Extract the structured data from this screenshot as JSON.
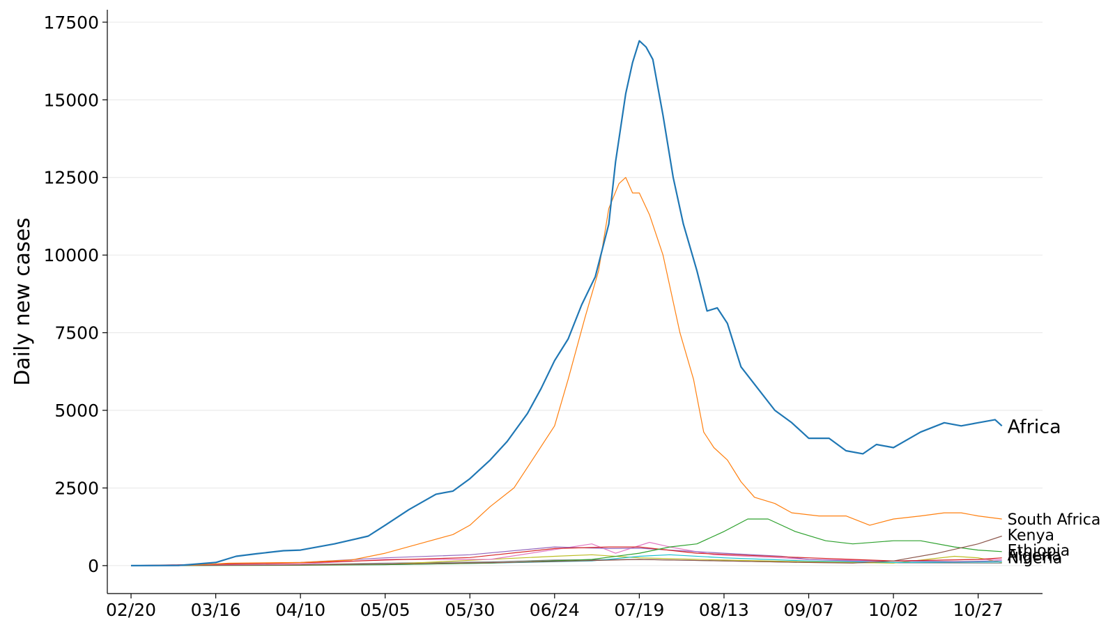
{
  "chart_data": {
    "type": "line",
    "title": "",
    "xlabel": "",
    "ylabel": "Daily new cases",
    "ylim": [
      -900,
      17900
    ],
    "yticks": [
      0,
      2500,
      5000,
      7500,
      10000,
      12500,
      15000,
      17500
    ],
    "ytick_labels": [
      "0",
      "2500",
      "5000",
      "7500",
      "10000",
      "12500",
      "15000",
      "17500"
    ],
    "x_start_date": "02/13",
    "x_end_date": "11/15",
    "xticks": [
      "02/20",
      "03/16",
      "04/10",
      "05/05",
      "05/30",
      "06/24",
      "07/19",
      "08/13",
      "09/07",
      "10/02",
      "10/27"
    ],
    "grid": "horizontal",
    "legend": "none (series names printed at line ends)",
    "series": [
      {
        "name": "Africa",
        "color": "#1f77b4",
        "label": "Africa",
        "points": [
          [
            "02/20",
            0
          ],
          [
            "03/05",
            5
          ],
          [
            "03/16",
            100
          ],
          [
            "03/22",
            300
          ],
          [
            "03/28",
            380
          ],
          [
            "04/05",
            480
          ],
          [
            "04/10",
            500
          ],
          [
            "04/20",
            700
          ],
          [
            "04/30",
            950
          ],
          [
            "05/05",
            1300
          ],
          [
            "05/12",
            1800
          ],
          [
            "05/20",
            2300
          ],
          [
            "05/25",
            2400
          ],
          [
            "05/30",
            2800
          ],
          [
            "06/05",
            3400
          ],
          [
            "06/10",
            4000
          ],
          [
            "06/16",
            4900
          ],
          [
            "06/20",
            5700
          ],
          [
            "06/24",
            6600
          ],
          [
            "06/28",
            7300
          ],
          [
            "07/02",
            8400
          ],
          [
            "07/06",
            9300
          ],
          [
            "07/10",
            11000
          ],
          [
            "07/12",
            13000
          ],
          [
            "07/15",
            15200
          ],
          [
            "07/17",
            16200
          ],
          [
            "07/19",
            16900
          ],
          [
            "07/21",
            16700
          ],
          [
            "07/23",
            16300
          ],
          [
            "07/26",
            14500
          ],
          [
            "07/29",
            12500
          ],
          [
            "08/01",
            11000
          ],
          [
            "08/05",
            9500
          ],
          [
            "08/08",
            8200
          ],
          [
            "08/11",
            8300
          ],
          [
            "08/14",
            7800
          ],
          [
            "08/18",
            6400
          ],
          [
            "08/23",
            5700
          ],
          [
            "08/28",
            5000
          ],
          [
            "09/02",
            4600
          ],
          [
            "09/07",
            4100
          ],
          [
            "09/13",
            4100
          ],
          [
            "09/18",
            3700
          ],
          [
            "09/23",
            3600
          ],
          [
            "09/27",
            3900
          ],
          [
            "10/02",
            3800
          ],
          [
            "10/10",
            4300
          ],
          [
            "10/17",
            4600
          ],
          [
            "10/22",
            4500
          ],
          [
            "10/27",
            4600
          ],
          [
            "11/01",
            4700
          ],
          [
            "11/03",
            4500
          ]
        ]
      },
      {
        "name": "South Africa",
        "color": "#ff7f0e",
        "label": "South Africa",
        "points": [
          [
            "02/20",
            0
          ],
          [
            "03/10",
            20
          ],
          [
            "03/20",
            80
          ],
          [
            "04/10",
            100
          ],
          [
            "04/25",
            180
          ],
          [
            "05/05",
            400
          ],
          [
            "05/15",
            700
          ],
          [
            "05/25",
            1000
          ],
          [
            "05/30",
            1300
          ],
          [
            "06/05",
            1900
          ],
          [
            "06/12",
            2500
          ],
          [
            "06/18",
            3500
          ],
          [
            "06/24",
            4500
          ],
          [
            "06/28",
            6000
          ],
          [
            "07/03",
            8000
          ],
          [
            "07/07",
            9500
          ],
          [
            "07/10",
            11500
          ],
          [
            "07/13",
            12300
          ],
          [
            "07/15",
            12500
          ],
          [
            "07/17",
            12000
          ],
          [
            "07/19",
            12000
          ],
          [
            "07/22",
            11300
          ],
          [
            "07/26",
            10000
          ],
          [
            "07/31",
            7500
          ],
          [
            "08/04",
            6000
          ],
          [
            "08/07",
            4300
          ],
          [
            "08/10",
            3800
          ],
          [
            "08/14",
            3400
          ],
          [
            "08/18",
            2700
          ],
          [
            "08/22",
            2200
          ],
          [
            "08/28",
            2000
          ],
          [
            "09/02",
            1700
          ],
          [
            "09/10",
            1600
          ],
          [
            "09/18",
            1600
          ],
          [
            "09/25",
            1300
          ],
          [
            "10/02",
            1500
          ],
          [
            "10/10",
            1600
          ],
          [
            "10/17",
            1700
          ],
          [
            "10/22",
            1700
          ],
          [
            "10/27",
            1600
          ],
          [
            "11/03",
            1500
          ]
        ]
      },
      {
        "name": "Kenya",
        "color": "#8c564b",
        "label": "Kenya",
        "points": [
          [
            "02/20",
            0
          ],
          [
            "04/10",
            20
          ],
          [
            "05/05",
            50
          ],
          [
            "06/10",
            100
          ],
          [
            "07/19",
            200
          ],
          [
            "08/13",
            150
          ],
          [
            "09/07",
            100
          ],
          [
            "09/20",
            80
          ],
          [
            "10/02",
            150
          ],
          [
            "10/15",
            400
          ],
          [
            "10/27",
            700
          ],
          [
            "11/03",
            950
          ]
        ]
      },
      {
        "name": "Ethiopia",
        "color": "#2ca02c",
        "label": "Ethiopia",
        "points": [
          [
            "02/20",
            0
          ],
          [
            "04/10",
            10
          ],
          [
            "05/05",
            30
          ],
          [
            "06/05",
            80
          ],
          [
            "07/05",
            200
          ],
          [
            "07/19",
            400
          ],
          [
            "07/28",
            600
          ],
          [
            "08/05",
            700
          ],
          [
            "08/13",
            1100
          ],
          [
            "08/20",
            1500
          ],
          [
            "08/26",
            1500
          ],
          [
            "09/03",
            1100
          ],
          [
            "09/12",
            800
          ],
          [
            "09/20",
            700
          ],
          [
            "10/02",
            800
          ],
          [
            "10/10",
            800
          ],
          [
            "10/20",
            600
          ],
          [
            "10/27",
            500
          ],
          [
            "11/03",
            450
          ]
        ]
      },
      {
        "name": "Algeria",
        "color": "#d62728",
        "label": "Algeria",
        "points": [
          [
            "02/20",
            0
          ],
          [
            "04/10",
            90
          ],
          [
            "05/05",
            180
          ],
          [
            "05/30",
            260
          ],
          [
            "06/24",
            550
          ],
          [
            "07/10",
            600
          ],
          [
            "07/19",
            600
          ],
          [
            "08/05",
            400
          ],
          [
            "08/20",
            330
          ],
          [
            "09/07",
            250
          ],
          [
            "09/20",
            200
          ],
          [
            "10/02",
            150
          ],
          [
            "10/27",
            200
          ],
          [
            "11/03",
            250
          ]
        ]
      },
      {
        "name": "Nigeria",
        "color": "#9467bd",
        "label": "Nigeria",
        "points": [
          [
            "02/20",
            0
          ],
          [
            "04/10",
            100
          ],
          [
            "05/05",
            250
          ],
          [
            "05/30",
            350
          ],
          [
            "06/24",
            600
          ],
          [
            "07/10",
            550
          ],
          [
            "07/19",
            560
          ],
          [
            "07/28",
            500
          ],
          [
            "08/13",
            400
          ],
          [
            "08/30",
            300
          ],
          [
            "09/07",
            200
          ],
          [
            "09/20",
            150
          ],
          [
            "10/02",
            150
          ],
          [
            "10/20",
            130
          ],
          [
            "10/27",
            140
          ],
          [
            "11/03",
            160
          ]
        ]
      },
      {
        "name": "",
        "color": "#e377c2",
        "label": "",
        "points": [
          [
            "02/20",
            0
          ],
          [
            "04/10",
            50
          ],
          [
            "05/05",
            200
          ],
          [
            "06/05",
            200
          ],
          [
            "07/05",
            700
          ],
          [
            "07/12",
            400
          ],
          [
            "07/22",
            750
          ],
          [
            "07/28",
            600
          ],
          [
            "08/10",
            350
          ],
          [
            "08/30",
            250
          ],
          [
            "09/07",
            200
          ],
          [
            "10/02",
            150
          ],
          [
            "10/27",
            200
          ],
          [
            "11/03",
            200
          ]
        ]
      },
      {
        "name": "",
        "color": "#17becf",
        "label": "",
        "points": [
          [
            "02/20",
            0
          ],
          [
            "05/05",
            30
          ],
          [
            "06/05",
            80
          ],
          [
            "07/05",
            150
          ],
          [
            "07/19",
            300
          ],
          [
            "07/28",
            350
          ],
          [
            "08/13",
            250
          ],
          [
            "09/07",
            150
          ],
          [
            "10/02",
            100
          ],
          [
            "11/03",
            120
          ]
        ]
      },
      {
        "name": "",
        "color": "#bcbd22",
        "label": "",
        "points": [
          [
            "02/20",
            0
          ],
          [
            "05/05",
            40
          ],
          [
            "06/24",
            300
          ],
          [
            "07/05",
            350
          ],
          [
            "07/19",
            250
          ],
          [
            "08/13",
            180
          ],
          [
            "09/07",
            120
          ],
          [
            "10/02",
            80
          ],
          [
            "10/20",
            300
          ],
          [
            "10/27",
            250
          ],
          [
            "11/03",
            100
          ]
        ]
      },
      {
        "name": "",
        "color": "#7f7f7f",
        "label": "",
        "points": [
          [
            "02/20",
            0
          ],
          [
            "04/10",
            30
          ],
          [
            "05/05",
            80
          ],
          [
            "06/05",
            120
          ],
          [
            "06/24",
            180
          ],
          [
            "07/19",
            200
          ],
          [
            "08/13",
            150
          ],
          [
            "09/07",
            100
          ],
          [
            "10/02",
            90
          ],
          [
            "11/03",
            80
          ]
        ]
      }
    ]
  }
}
